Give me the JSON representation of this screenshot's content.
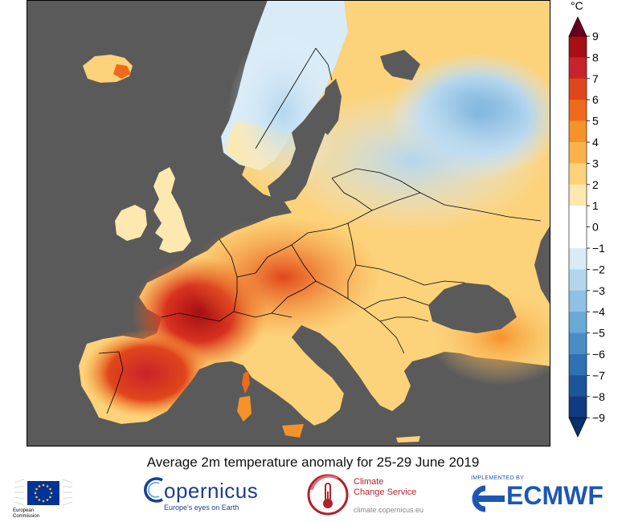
{
  "map": {
    "caption": "Average 2m temperature anomaly for 25-29 June 2019",
    "ocean_color": "#5a5a5a",
    "border_color": "#000000"
  },
  "colorbar": {
    "unit": "°C",
    "ticks": [
      "9",
      "8",
      "7",
      "6",
      "5",
      "4",
      "3",
      "2",
      "1",
      "0",
      "−1",
      "−2",
      "−3",
      "−4",
      "−5",
      "−6",
      "−7",
      "−8",
      "−9"
    ],
    "colors": [
      "#67001f",
      "#a50f15",
      "#c8232a",
      "#e0461b",
      "#ef6a1a",
      "#f6922a",
      "#f9b449",
      "#fcd27a",
      "#fde8b0",
      "#ffffff",
      "#ffffff",
      "#d9ebf7",
      "#b3d6ee",
      "#8ec1e4",
      "#6aa8d6",
      "#4a8dc6",
      "#2f71b2",
      "#1c559b",
      "#103b80",
      "#08306b"
    ]
  },
  "logos": {
    "ec_line1": "European",
    "ec_line2": "Commission",
    "copernicus_name": "opernicus",
    "copernicus_c": "C",
    "copernicus_tagline": "Europe's eyes on Earth",
    "c3s_line1": "Climate",
    "c3s_line2": "Change Service",
    "c3s_url": "climate.copernicus.eu",
    "ecmwf_implemented": "IMPLEMENTED BY",
    "ecmwf_name": "ECMWF"
  }
}
